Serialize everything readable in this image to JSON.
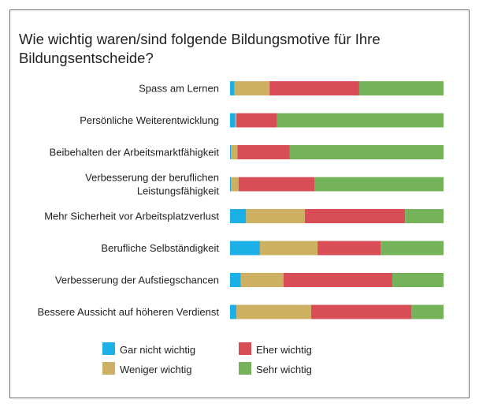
{
  "chart_data": {
    "type": "bar",
    "orientation": "horizontal",
    "stacked": true,
    "title": "Wie wichtig waren/sind folgende Bildungsmotive für Ihre Bildungsentscheide?",
    "xlim": [
      0,
      100
    ],
    "grid": false,
    "legend_position": "bottom",
    "categories": [
      [
        "Spass am Lernen"
      ],
      [
        "Persönliche Weiterentwicklung"
      ],
      [
        "Beibehalten der Arbeitsmarktfähigkeit"
      ],
      [
        "Verbesserung der beruflichen",
        "Leistungsfähigkeit"
      ],
      [
        "Mehr Sicherheit vor Arbeitsplatzverlust"
      ],
      [
        "Berufliche Selbständigkeit"
      ],
      [
        "Verbesserung der Aufstiegschancen"
      ],
      [
        "Bessere Aussicht auf höheren Verdienst"
      ]
    ],
    "series": [
      {
        "name": "Gar nicht wichtig",
        "color": "#1cb0e6",
        "values": [
          2,
          2.5,
          0.5,
          0.5,
          7.5,
          14,
          5,
          3
        ]
      },
      {
        "name": "Weniger wichtig",
        "color": "#cdb062",
        "values": [
          16.5,
          0.5,
          3,
          3.5,
          27.5,
          27,
          20,
          35
        ]
      },
      {
        "name": "Eher wichtig",
        "color": "#d94d57",
        "values": [
          42,
          19,
          24.5,
          35.5,
          47,
          29.5,
          51,
          47
        ]
      },
      {
        "name": "Sehr wichtig",
        "color": "#74b35a",
        "values": [
          39.5,
          78,
          72,
          60.5,
          18,
          29.5,
          24,
          15
        ]
      }
    ]
  }
}
